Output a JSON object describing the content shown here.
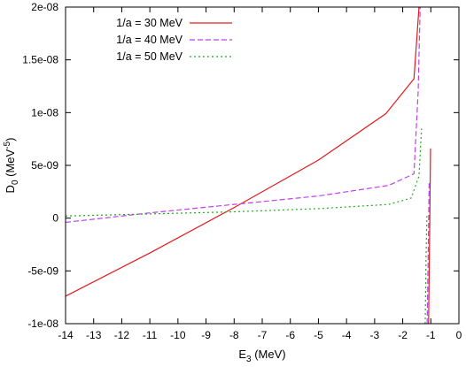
{
  "chart_data": {
    "type": "line",
    "xlabel": {
      "main": "E",
      "sub": "3",
      "rest": " (MeV)"
    },
    "ylabel": {
      "main": "D",
      "sub": "0",
      "mid": " (MeV",
      "sup": "-5",
      "end": ")"
    },
    "xlim": [
      -14,
      0
    ],
    "ylim": [
      -1e-08,
      2e-08
    ],
    "grid": false,
    "legend_position": "top-left",
    "x_ticks": [
      {
        "value": -14,
        "label": "-14"
      },
      {
        "value": -13,
        "label": "-13"
      },
      {
        "value": -12,
        "label": "-12"
      },
      {
        "value": -11,
        "label": "-11"
      },
      {
        "value": -10,
        "label": "-10"
      },
      {
        "value": -9,
        "label": "-9"
      },
      {
        "value": -8,
        "label": "-8"
      },
      {
        "value": -7,
        "label": "-7"
      },
      {
        "value": -6,
        "label": "-6"
      },
      {
        "value": -5,
        "label": "-5"
      },
      {
        "value": -4,
        "label": "-4"
      },
      {
        "value": -3,
        "label": "-3"
      },
      {
        "value": -2,
        "label": "-2"
      },
      {
        "value": -1,
        "label": "-1"
      },
      {
        "value": 0,
        "label": "0"
      }
    ],
    "y_ticks": [
      {
        "value": -1e-08,
        "label": "-1e-08"
      },
      {
        "value": -5e-09,
        "label": "-5e-09"
      },
      {
        "value": 0,
        "label": "0"
      },
      {
        "value": 5e-09,
        "label": "5e-09"
      },
      {
        "value": 1e-08,
        "label": "1e-08"
      },
      {
        "value": 1.5e-08,
        "label": "1.5e-08"
      },
      {
        "value": 2e-08,
        "label": "2e-08"
      }
    ],
    "series": [
      {
        "name": "1/a = 30 MeV",
        "color": "#e41a1c",
        "dash": "solid",
        "segments": [
          [
            [
              -14,
              -7.4e-09
            ],
            [
              -11,
              -3.3e-09
            ],
            [
              -8,
              1e-09
            ],
            [
              -5,
              5.5e-09
            ],
            [
              -4.4,
              6.6e-09
            ],
            [
              -2.6,
              9.9e-09
            ],
            [
              -1.6,
              1.32e-08
            ],
            [
              -1.42,
              2e-08
            ]
          ],
          [
            [
              -1.08,
              -1e-08
            ],
            [
              -1.04,
              -1e-09
            ],
            [
              -1.01,
              6.6e-09
            ]
          ]
        ]
      },
      {
        "name": "1/a = 40 MeV",
        "color": "#c040f0",
        "dash": "dashed",
        "segments": [
          [
            [
              -14,
              -4e-10
            ],
            [
              -11,
              5e-10
            ],
            [
              -8,
              1.3e-09
            ],
            [
              -5,
              2.1e-09
            ],
            [
              -2.5,
              3.1e-09
            ],
            [
              -1.6,
              4.2e-09
            ],
            [
              -1.45,
              1.2e-08
            ],
            [
              -1.38,
              2e-08
            ]
          ],
          [
            [
              -1.13,
              -1e-08
            ],
            [
              -1.09,
              -3e-09
            ],
            [
              -1.06,
              3.3e-09
            ]
          ]
        ]
      },
      {
        "name": "1/a = 50 MeV",
        "color": "#22aa22",
        "dash": "dotted",
        "segments": [
          [
            [
              -14,
              2e-10
            ],
            [
              -11,
              4e-10
            ],
            [
              -8,
              6e-10
            ],
            [
              -5,
              9e-10
            ],
            [
              -2.5,
              1.3e-09
            ],
            [
              -1.7,
              1.9e-09
            ],
            [
              -1.42,
              4e-09
            ],
            [
              -1.33,
              8.5e-09
            ]
          ],
          [
            [
              -1.2,
              -1e-08
            ],
            [
              -1.17,
              -4e-09
            ],
            [
              -1.14,
              2e-10
            ]
          ]
        ]
      }
    ]
  }
}
